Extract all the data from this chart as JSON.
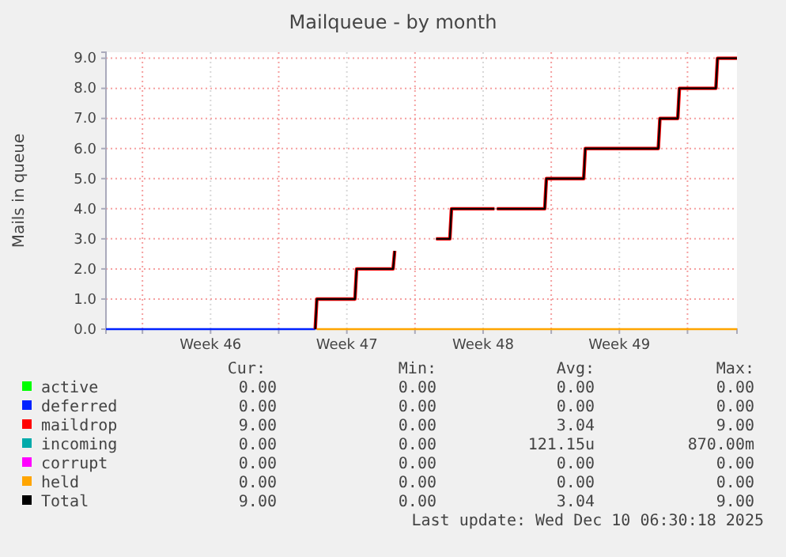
{
  "chart_data": {
    "type": "line",
    "title": "Mailqueue - by month",
    "ylabel": "Mails in queue",
    "xlim": [
      "2025-11-08T03:00",
      "2025-12-10T13:00"
    ],
    "xticks": [
      {
        "value": "2025-11-10T00:00",
        "label": null
      },
      {
        "value": "2025-11-13T12:00",
        "label": "Week 46"
      },
      {
        "value": "2025-11-17T00:00",
        "label": null
      },
      {
        "value": "2025-11-20T12:00",
        "label": "Week 47"
      },
      {
        "value": "2025-11-24T00:00",
        "label": null
      },
      {
        "value": "2025-11-27T12:00",
        "label": "Week 48"
      },
      {
        "value": "2025-12-01T00:00",
        "label": null
      },
      {
        "value": "2025-12-04T12:00",
        "label": "Week 49"
      },
      {
        "value": "2025-12-08T00:00",
        "label": null
      }
    ],
    "ylim": [
      0,
      9.2
    ],
    "yticks": [
      {
        "value": 0,
        "label": "0.0"
      },
      {
        "value": 1,
        "label": "1.0"
      },
      {
        "value": 2,
        "label": "2.0"
      },
      {
        "value": 3,
        "label": "3.0"
      },
      {
        "value": 4,
        "label": "4.0"
      },
      {
        "value": 5,
        "label": "5.0"
      },
      {
        "value": 6,
        "label": "6.0"
      },
      {
        "value": 7,
        "label": "7.0"
      },
      {
        "value": 8,
        "label": "8.0"
      },
      {
        "value": 9,
        "label": "9.0"
      }
    ],
    "grid": true,
    "legend": "bottom",
    "marker": "none",
    "line_style": "solid",
    "series": [
      {
        "name": "active",
        "color": "#00ff00"
      },
      {
        "name": "deferred",
        "color": "#0022ff",
        "x": [
          "2025-11-08T03:00",
          "2025-11-18T21:00"
        ],
        "values": [
          0,
          0
        ]
      },
      {
        "name": "maildrop",
        "color": "#ff0000",
        "x": [
          "2025-11-18T21:00",
          "2025-11-18T23:00",
          "2025-11-20T22:00",
          "2025-11-21T00:00",
          "2025-11-22T21:00",
          "2025-11-22T23:00",
          "2025-11-24T00:00",
          "2025-11-25T02:00",
          "2025-11-25T19:00",
          "2025-11-25T21:00",
          "2025-11-28T02:00",
          "2025-11-28T03:00",
          "2025-11-28T05:00",
          "2025-11-30T16:00",
          "2025-11-30T18:00",
          "2025-12-02T16:00",
          "2025-12-02T18:00",
          "2025-12-06T12:00",
          "2025-12-06T14:00",
          "2025-12-07T12:00",
          "2025-12-07T14:00",
          "2025-12-09T11:00",
          "2025-12-09T13:00",
          "2025-12-10T13:00"
        ],
        "values": [
          0,
          1,
          1,
          2,
          2,
          2.6,
          null,
          3,
          3,
          4,
          4,
          null,
          4,
          4,
          5,
          5,
          6,
          6,
          7,
          7,
          8,
          8,
          9,
          9
        ]
      },
      {
        "name": "incoming",
        "color": "#00aaaa"
      },
      {
        "name": "corrupt",
        "color": "#ff00ff"
      },
      {
        "name": "held",
        "color": "#ffa500",
        "x": [
          "2025-11-18T23:00",
          "2025-12-10T13:00"
        ],
        "values": [
          0,
          0
        ]
      },
      {
        "name": "Total",
        "color": "#000000",
        "x": [
          "2025-11-18T21:00",
          "2025-11-18T23:00",
          "2025-11-20T22:00",
          "2025-11-21T00:00",
          "2025-11-22T21:00",
          "2025-11-22T23:00",
          "2025-11-24T00:00",
          "2025-11-25T02:00",
          "2025-11-25T19:00",
          "2025-11-25T21:00",
          "2025-11-28T02:00",
          "2025-11-28T03:00",
          "2025-11-28T05:00",
          "2025-11-30T16:00",
          "2025-11-30T18:00",
          "2025-12-02T16:00",
          "2025-12-02T18:00",
          "2025-12-06T12:00",
          "2025-12-06T14:00",
          "2025-12-07T12:00",
          "2025-12-07T14:00",
          "2025-12-09T11:00",
          "2025-12-09T13:00",
          "2025-12-10T13:00"
        ],
        "values": [
          0,
          1,
          1,
          2,
          2,
          2.6,
          null,
          3,
          3,
          4,
          4,
          null,
          4,
          4,
          5,
          5,
          6,
          6,
          7,
          7,
          8,
          8,
          9,
          9
        ]
      }
    ],
    "annotations": [
      "Cur:",
      "Min:",
      "Avg:",
      "Max:",
      "0.00",
      "0.00",
      "0.00",
      "0.00",
      "0.00",
      "0.00",
      "0.00",
      "0.00",
      "9.00",
      "0.00",
      "3.04",
      "9.00",
      "0.00",
      "0.00",
      "121.15u",
      "870.00m",
      "0.00",
      "0.00",
      "0.00",
      "0.00",
      "0.00",
      "0.00",
      "0.00",
      "0.00",
      "9.00",
      "0.00",
      "3.04",
      "9.00",
      "Last update: Wed Dec 10 06:30:18 2025"
    ]
  }
}
